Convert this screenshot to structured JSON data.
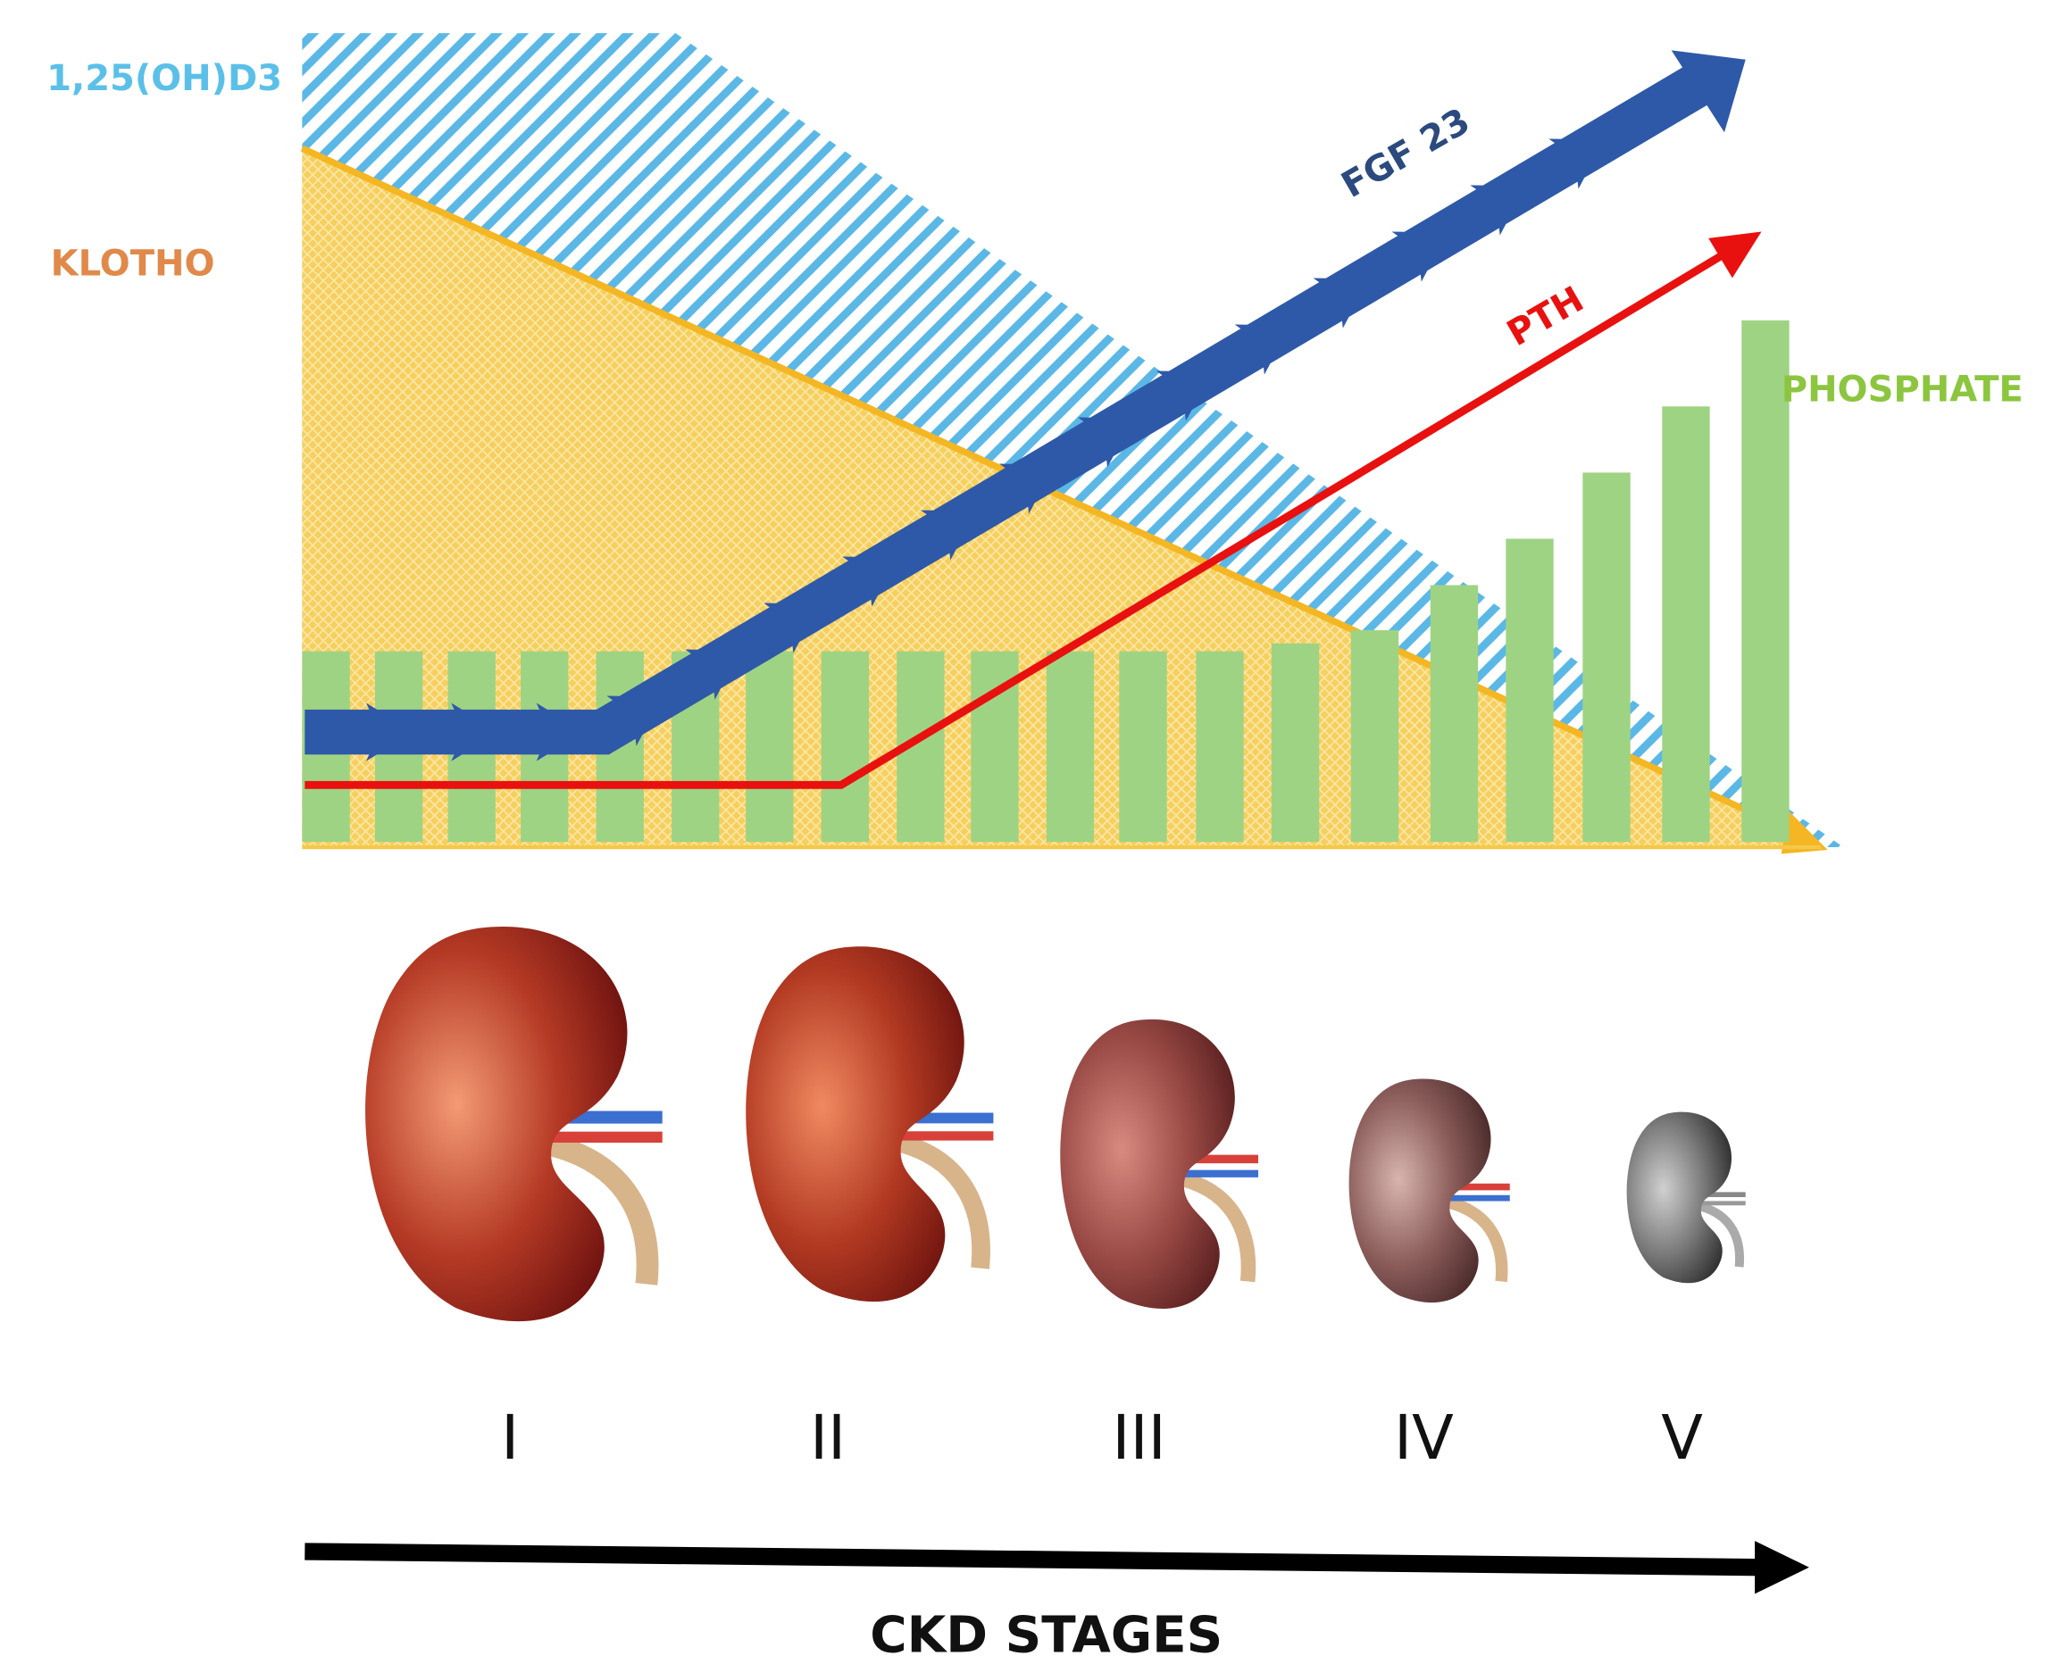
{
  "labels": {
    "vitamin_d": "1,25(OH)D3",
    "klotho": "KLOTHO",
    "fgf23": "FGF 23",
    "pth": "PTH",
    "phosphate": "PHOSPHATE"
  },
  "stages": [
    "I",
    "II",
    "III",
    "IV",
    "V"
  ],
  "axis_label": "CKD STAGES"
}
